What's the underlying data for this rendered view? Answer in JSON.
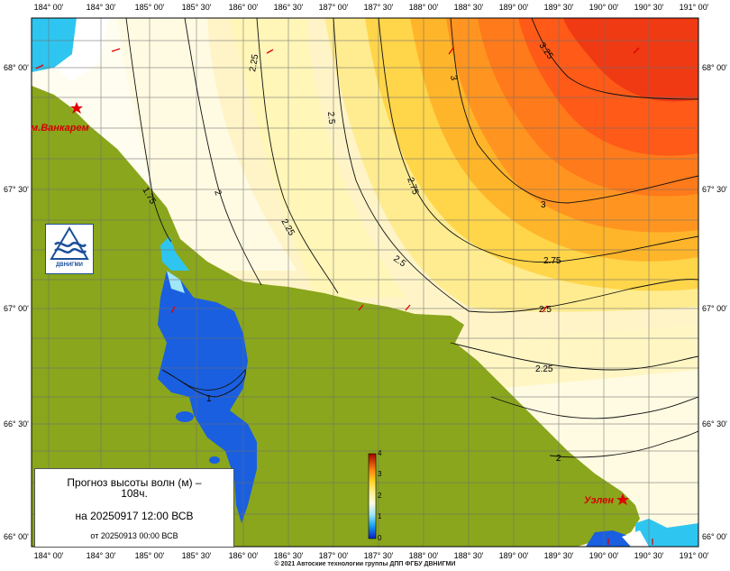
{
  "map": {
    "lon_labels": [
      "184° 00'",
      "184° 30'",
      "185° 00'",
      "185° 30'",
      "186° 00'",
      "186° 30'",
      "187° 00'",
      "187° 30'",
      "188° 00'",
      "188° 30'",
      "189° 00'",
      "189° 30'",
      "190° 00'",
      "190° 30'",
      "191° 00'"
    ],
    "lat_labels": [
      "68° 00'",
      "67° 30'",
      "67° 00'",
      "66° 30'",
      "66° 00'"
    ],
    "contour_labels": [
      "1",
      "1.75",
      "2",
      "2.25",
      "2.25",
      "2.25",
      "2.5",
      "2.5",
      "2.5",
      "2.75",
      "2.75",
      "3",
      "3",
      "3.25",
      "2"
    ],
    "places": [
      "м.Ванкарем",
      "Уэлен"
    ],
    "colors": {
      "land": "#8aa61c",
      "deep_water": "#1a5fe0",
      "cyan": "#2ec6f0",
      "red": "#f03a1a"
    }
  },
  "colorbar": {
    "ticks": [
      "4",
      "3",
      "2",
      "1",
      "0"
    ],
    "min": 0,
    "max": 4
  },
  "legend": {
    "title_line1": "Прогноз высоты волн (м) –",
    "title_line2": "108ч.",
    "date_line": "на 20250917 12:00 ВСВ",
    "run_line": "от 20250913 00:00 ВСВ"
  },
  "logo": {
    "text": "ДВНИГМИ"
  },
  "footer": {
    "copyright": "© 2021 Автоские технологии группы ДПП ФГБУ ДВНИГМИ"
  }
}
